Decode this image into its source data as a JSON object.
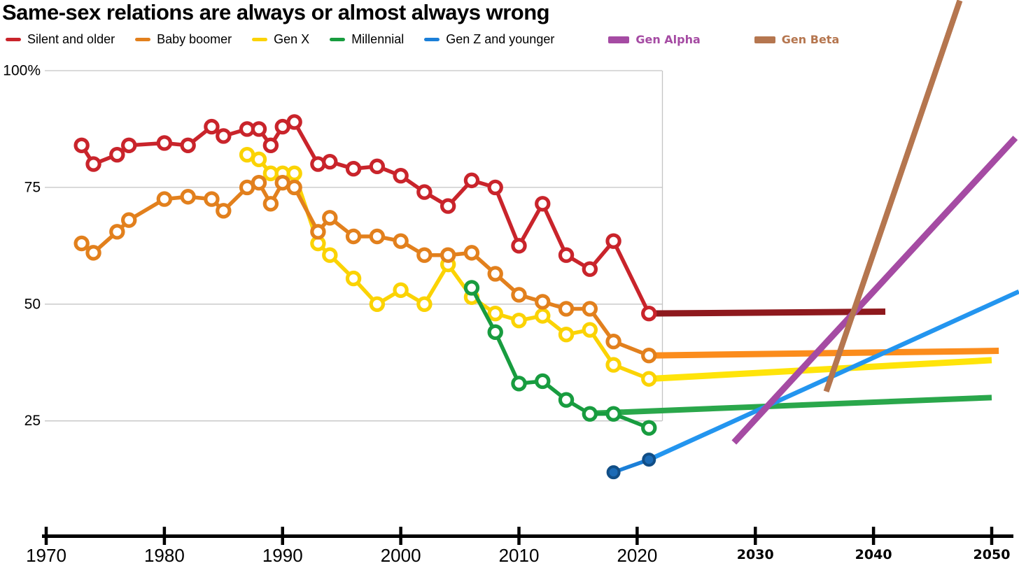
{
  "title": "Same-sex relations are always or almost always wrong",
  "legend": [
    {
      "label": "Silent and older",
      "color": "#c9242b",
      "joke": false
    },
    {
      "label": "Baby boomer",
      "color": "#e2801d",
      "joke": false
    },
    {
      "label": "Gen X",
      "color": "#fbd304",
      "joke": false
    },
    {
      "label": "Millennial",
      "color": "#189c3f",
      "joke": false
    },
    {
      "label": "Gen Z and younger",
      "color": "#1b7fd8",
      "joke": false
    },
    {
      "label": "Gen Alpha",
      "color": "#a54ba3",
      "joke": true
    },
    {
      "label": "Gen Beta",
      "color": "#b5764f",
      "joke": true
    }
  ],
  "chart_data": {
    "type": "line",
    "title": "Same-sex relations are always or almost always wrong",
    "x_axis": {
      "range": [
        1968,
        2052.5
      ],
      "ticks": [
        {
          "year": 1970,
          "label": "1970",
          "joke": false
        },
        {
          "year": 1980,
          "label": "1980",
          "joke": false
        },
        {
          "year": 1990,
          "label": "1990",
          "joke": false
        },
        {
          "year": 2000,
          "label": "2000",
          "joke": false
        },
        {
          "year": 2010,
          "label": "2010",
          "joke": false
        },
        {
          "year": 2020,
          "label": "2020",
          "joke": false
        },
        {
          "year": 2030,
          "label": "2030",
          "joke": true
        },
        {
          "year": 2040,
          "label": "2040",
          "joke": true
        },
        {
          "year": 2050,
          "label": "2050",
          "joke": true
        }
      ]
    },
    "y_axis": {
      "unit": "%",
      "range": [
        0,
        100
      ],
      "gridlines": [
        25,
        50,
        75,
        100
      ],
      "tick_labels": [
        {
          "value": 100,
          "label": "100%"
        },
        {
          "value": 75,
          "label": "75"
        },
        {
          "value": 50,
          "label": "50"
        },
        {
          "value": 25,
          "label": "25"
        }
      ]
    },
    "series": [
      {
        "name": "Silent and older",
        "color": "#c9242b",
        "marker": "ring",
        "points": [
          [
            1973,
            84
          ],
          [
            1974,
            80
          ],
          [
            1976,
            82
          ],
          [
            1977,
            84
          ],
          [
            1980,
            84.5
          ],
          [
            1982,
            84
          ],
          [
            1984,
            88
          ],
          [
            1985,
            86
          ],
          [
            1987,
            87.5
          ],
          [
            1988,
            87.5
          ],
          [
            1989,
            84
          ],
          [
            1990,
            88
          ],
          [
            1991,
            89
          ],
          [
            1993,
            80
          ],
          [
            1994,
            80.5
          ],
          [
            1996,
            79
          ],
          [
            1998,
            79.5
          ],
          [
            2000,
            77.5
          ],
          [
            2002,
            74
          ],
          [
            2004,
            71
          ],
          [
            2006,
            76.5
          ],
          [
            2008,
            75
          ],
          [
            2010,
            62.5
          ],
          [
            2012,
            71.5
          ],
          [
            2014,
            60.5
          ],
          [
            2016,
            57.5
          ],
          [
            2018,
            63.5
          ],
          [
            2021,
            48
          ]
        ]
      },
      {
        "name": "Gen X",
        "color": "#fbd304",
        "marker": "ring",
        "points": [
          [
            1987,
            82
          ],
          [
            1988,
            81
          ],
          [
            1989,
            78
          ],
          [
            1990,
            78
          ],
          [
            1991,
            78
          ],
          [
            1993,
            63
          ],
          [
            1994,
            60.5
          ],
          [
            1996,
            55.5
          ],
          [
            1998,
            50
          ],
          [
            2000,
            53
          ],
          [
            2002,
            50
          ],
          [
            2004,
            58.5
          ],
          [
            2006,
            51.5
          ],
          [
            2008,
            48
          ],
          [
            2010,
            46.5
          ],
          [
            2012,
            47.5
          ],
          [
            2014,
            43.5
          ],
          [
            2016,
            44.5
          ],
          [
            2018,
            37
          ],
          [
            2021,
            34
          ]
        ]
      },
      {
        "name": "Baby boomer",
        "color": "#e2801d",
        "marker": "ring",
        "points": [
          [
            1973,
            63
          ],
          [
            1974,
            61
          ],
          [
            1976,
            65.5
          ],
          [
            1977,
            68
          ],
          [
            1980,
            72.5
          ],
          [
            1982,
            73
          ],
          [
            1984,
            72.5
          ],
          [
            1985,
            70
          ],
          [
            1987,
            75
          ],
          [
            1988,
            76
          ],
          [
            1989,
            71.5
          ],
          [
            1990,
            76
          ],
          [
            1991,
            75
          ],
          [
            1993,
            65.5
          ],
          [
            1994,
            68.5
          ],
          [
            1996,
            64.5
          ],
          [
            1998,
            64.5
          ],
          [
            2000,
            63.5
          ],
          [
            2002,
            60.5
          ],
          [
            2004,
            60.5
          ],
          [
            2006,
            61
          ],
          [
            2008,
            56.5
          ],
          [
            2010,
            52
          ],
          [
            2012,
            50.5
          ],
          [
            2014,
            49
          ],
          [
            2016,
            49
          ],
          [
            2018,
            42
          ],
          [
            2021,
            39
          ]
        ]
      },
      {
        "name": "Millennial",
        "color": "#189c3f",
        "marker": "ring",
        "points": [
          [
            2006,
            53.5
          ],
          [
            2008,
            44
          ],
          [
            2010,
            33
          ],
          [
            2012,
            33.5
          ],
          [
            2014,
            29.5
          ],
          [
            2016,
            26.5
          ],
          [
            2018,
            26.5
          ],
          [
            2021,
            23.5
          ]
        ]
      },
      {
        "name": "Gen Z and younger",
        "color": "#1b7fd8",
        "marker": "dot",
        "marker_fill": "#1b6ab5",
        "marker_stroke": "#114e86",
        "points": [
          [
            2018,
            14
          ],
          [
            2021,
            16.7
          ]
        ]
      }
    ],
    "projections": [
      {
        "name": "Silent and older (projected)",
        "color": "#8e191d",
        "width": 9,
        "points": [
          [
            2021,
            48
          ],
          [
            2041,
            48.4
          ]
        ]
      },
      {
        "name": "Baby boomer (projected)",
        "color": "#fb8c1c",
        "width": 9,
        "points": [
          [
            2021,
            39
          ],
          [
            2050.6,
            40
          ]
        ]
      },
      {
        "name": "Gen X (projected)",
        "color": "#ffe40a",
        "width": 9,
        "points": [
          [
            2021,
            34
          ],
          [
            2050,
            38
          ]
        ]
      },
      {
        "name": "Millennial (projected)",
        "color": "#2aa74b",
        "width": 8,
        "points": [
          [
            2016,
            26.6
          ],
          [
            2050,
            30
          ]
        ]
      },
      {
        "name": "Gen Z and younger (projected)",
        "color": "#2395ef",
        "width": 6.5,
        "points": [
          [
            2021,
            16.7
          ],
          [
            2052.3,
            52.7
          ]
        ]
      },
      {
        "name": "Gen Alpha",
        "color": "#a54ba3",
        "width": 9,
        "points": [
          [
            2028.2,
            20.4
          ],
          [
            2052,
            85.6
          ]
        ]
      },
      {
        "name": "Gen Beta",
        "color": "#b5764f",
        "width": 8,
        "points": [
          [
            2036,
            31.3
          ],
          [
            2047.3,
            115
          ]
        ]
      }
    ],
    "legend_position": "top",
    "grid": true
  }
}
